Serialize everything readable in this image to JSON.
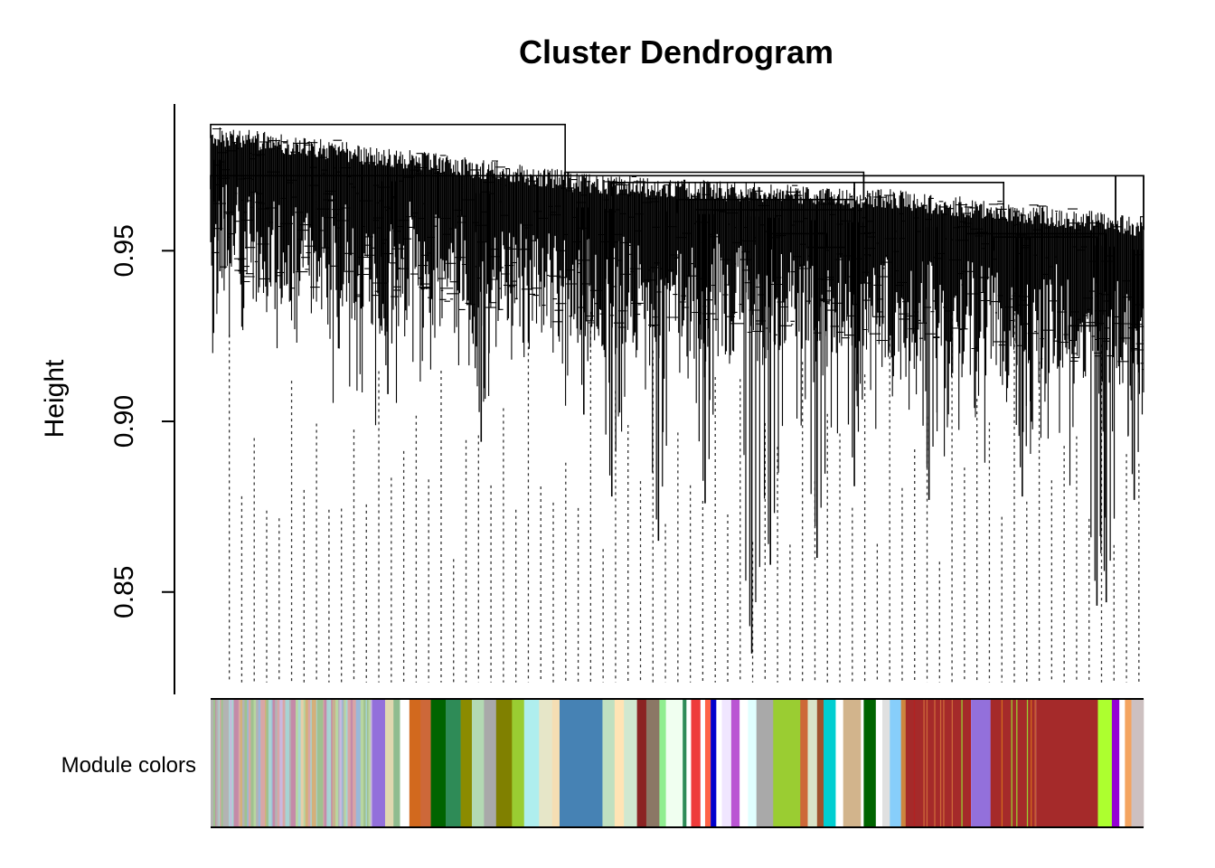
{
  "chart_data": {
    "type": "dendrogram",
    "title": "Cluster Dendrogram",
    "xlabel": "",
    "ylabel": "Height",
    "ylim": [
      0.82,
      0.993
    ],
    "y_ticks": [
      {
        "value": 0.85,
        "label": "0.85"
      },
      {
        "value": 0.9,
        "label": "0.90"
      },
      {
        "value": 0.95,
        "label": "0.95"
      }
    ],
    "merges": [
      {
        "x0": 0.0,
        "x1": 1.0,
        "h": 0.972
      },
      {
        "x0": 0.0,
        "x1": 0.38,
        "h": 0.987
      },
      {
        "x0": 0.38,
        "x1": 0.7,
        "h": 0.973
      },
      {
        "x0": 0.7,
        "x1": 0.97,
        "h": 0.972
      },
      {
        "x0": 0.97,
        "x1": 1.0,
        "h": 0.972
      },
      {
        "x0": 0.43,
        "x1": 0.69,
        "h": 0.97
      },
      {
        "x0": 0.5,
        "x1": 0.69,
        "h": 0.965
      },
      {
        "x0": 0.52,
        "x1": 0.69,
        "h": 0.962
      },
      {
        "x0": 0.6,
        "x1": 0.66,
        "h": 0.955
      },
      {
        "x0": 0.64,
        "x1": 0.68,
        "h": 0.951
      },
      {
        "x0": 0.69,
        "x1": 0.85,
        "h": 0.97
      },
      {
        "x0": 0.81,
        "x1": 0.96,
        "h": 0.955
      },
      {
        "x0": 0.84,
        "x1": 0.95,
        "h": 0.954
      },
      {
        "x0": 0.92,
        "x1": 0.95,
        "h": 0.928
      }
    ],
    "deep_leaves": [
      {
        "x": 0.01,
        "h": 0.944
      },
      {
        "x": 0.19,
        "h": 0.908
      },
      {
        "x": 0.29,
        "h": 0.894
      },
      {
        "x": 0.4,
        "h": 0.902
      },
      {
        "x": 0.43,
        "h": 0.878
      },
      {
        "x": 0.48,
        "h": 0.865
      },
      {
        "x": 0.53,
        "h": 0.876
      },
      {
        "x": 0.58,
        "h": 0.832
      },
      {
        "x": 0.6,
        "h": 0.858
      },
      {
        "x": 0.65,
        "h": 0.86
      },
      {
        "x": 0.69,
        "h": 0.881
      },
      {
        "x": 0.77,
        "h": 0.877
      },
      {
        "x": 0.87,
        "h": 0.878
      },
      {
        "x": 0.95,
        "h": 0.846
      },
      {
        "x": 0.96,
        "h": 0.847
      },
      {
        "x": 0.99,
        "h": 0.877
      }
    ],
    "colors_label": "Module colors",
    "module_colors": [
      {
        "x0": 0.0,
        "x1": 0.173,
        "color": "mixed",
        "palette": [
          "#b3b3b3",
          "#9ab8d9",
          "#d8a6a6",
          "#b8d6a0",
          "#c9b8e0",
          "#e6cfa8",
          "#a7d3d3",
          "#d4b07a",
          "#9fc18f",
          "#c48aa8"
        ]
      },
      {
        "x0": 0.173,
        "x1": 0.187,
        "color": "#9370db"
      },
      {
        "x0": 0.187,
        "x1": 0.196,
        "color": "#e0d8b0"
      },
      {
        "x0": 0.196,
        "x1": 0.203,
        "color": "#8fbc8f"
      },
      {
        "x0": 0.203,
        "x1": 0.213,
        "color": "#ffffff"
      },
      {
        "x0": 0.213,
        "x1": 0.225,
        "color": "#d2691e"
      },
      {
        "x0": 0.225,
        "x1": 0.236,
        "color": "#cd6839"
      },
      {
        "x0": 0.236,
        "x1": 0.252,
        "color": "#006400"
      },
      {
        "x0": 0.252,
        "x1": 0.268,
        "color": "#2e8b57"
      },
      {
        "x0": 0.268,
        "x1": 0.28,
        "color": "#8b8b00"
      },
      {
        "x0": 0.28,
        "x1": 0.293,
        "color": "#b3d9b3"
      },
      {
        "x0": 0.293,
        "x1": 0.306,
        "color": "#a9a9a9"
      },
      {
        "x0": 0.306,
        "x1": 0.323,
        "color": "#808000"
      },
      {
        "x0": 0.323,
        "x1": 0.336,
        "color": "#9acd32"
      },
      {
        "x0": 0.336,
        "x1": 0.352,
        "color": "#afeeee"
      },
      {
        "x0": 0.352,
        "x1": 0.366,
        "color": "#e6e6c8"
      },
      {
        "x0": 0.366,
        "x1": 0.374,
        "color": "#f5deb3"
      },
      {
        "x0": 0.374,
        "x1": 0.42,
        "color": "#4682b4"
      },
      {
        "x0": 0.42,
        "x1": 0.433,
        "color": "#c0e0c0"
      },
      {
        "x0": 0.433,
        "x1": 0.443,
        "color": "#ffe4b5"
      },
      {
        "x0": 0.443,
        "x1": 0.457,
        "color": "#d0e8d0"
      },
      {
        "x0": 0.457,
        "x1": 0.467,
        "color": "#8b2323"
      },
      {
        "x0": 0.467,
        "x1": 0.481,
        "color": "#8b7765"
      },
      {
        "x0": 0.481,
        "x1": 0.488,
        "color": "#90ee90"
      },
      {
        "x0": 0.488,
        "x1": 0.506,
        "color": "#f0fff0"
      },
      {
        "x0": 0.506,
        "x1": 0.51,
        "color": "#2e8b57"
      },
      {
        "x0": 0.51,
        "x1": 0.515,
        "color": "#ffffff"
      },
      {
        "x0": 0.515,
        "x1": 0.525,
        "color": "#ee3b3b"
      },
      {
        "x0": 0.525,
        "x1": 0.53,
        "color": "#ffffff"
      },
      {
        "x0": 0.53,
        "x1": 0.536,
        "color": "#ff6347"
      },
      {
        "x0": 0.536,
        "x1": 0.542,
        "color": "#0000cd"
      },
      {
        "x0": 0.542,
        "x1": 0.548,
        "color": "#ffffff"
      },
      {
        "x0": 0.548,
        "x1": 0.558,
        "color": "#f0e6ff"
      },
      {
        "x0": 0.558,
        "x1": 0.567,
        "color": "#ba55d3"
      },
      {
        "x0": 0.567,
        "x1": 0.576,
        "color": "#ffffff"
      },
      {
        "x0": 0.576,
        "x1": 0.585,
        "color": "#e0ffff"
      },
      {
        "x0": 0.585,
        "x1": 0.603,
        "color": "#a9a9a9"
      },
      {
        "x0": 0.603,
        "x1": 0.625,
        "color": "#9acd32"
      },
      {
        "x0": 0.625,
        "x1": 0.632,
        "color": "#9acd32"
      },
      {
        "x0": 0.632,
        "x1": 0.64,
        "color": "#cd6839"
      },
      {
        "x0": 0.64,
        "x1": 0.65,
        "color": "#d9e3c8"
      },
      {
        "x0": 0.65,
        "x1": 0.657,
        "color": "#a0522d"
      },
      {
        "x0": 0.657,
        "x1": 0.67,
        "color": "#00ced1"
      },
      {
        "x0": 0.67,
        "x1": 0.678,
        "color": "#ffffff"
      },
      {
        "x0": 0.678,
        "x1": 0.697,
        "color": "#d2b48c"
      },
      {
        "x0": 0.697,
        "x1": 0.7,
        "color": "#ffffff"
      },
      {
        "x0": 0.7,
        "x1": 0.713,
        "color": "#006400"
      },
      {
        "x0": 0.713,
        "x1": 0.72,
        "color": "#ffffff"
      },
      {
        "x0": 0.72,
        "x1": 0.728,
        "color": "#e0e0e0"
      },
      {
        "x0": 0.728,
        "x1": 0.74,
        "color": "#87cefa"
      },
      {
        "x0": 0.74,
        "x1": 0.745,
        "color": "#cd853f"
      },
      {
        "x0": 0.745,
        "x1": 0.815,
        "color": "stripes",
        "base": "#a52a2a",
        "alt": [
          "#cd6839",
          "#9acd32",
          "#cd853f",
          "#b22222"
        ]
      },
      {
        "x0": 0.815,
        "x1": 0.836,
        "color": "#9370db"
      },
      {
        "x0": 0.836,
        "x1": 0.885,
        "color": "stripes",
        "base": "#a52a2a",
        "alt": [
          "#cd6839",
          "#9acd32",
          "#d2691e"
        ]
      },
      {
        "x0": 0.885,
        "x1": 0.951,
        "color": "#a52a2a"
      },
      {
        "x0": 0.951,
        "x1": 0.966,
        "color": "#adff2f"
      },
      {
        "x0": 0.966,
        "x1": 0.974,
        "color": "#9400d3"
      },
      {
        "x0": 0.974,
        "x1": 0.98,
        "color": "#ffffff"
      },
      {
        "x0": 0.98,
        "x1": 0.987,
        "color": "#f4a460"
      },
      {
        "x0": 0.987,
        "x1": 1.0,
        "color": "#cdc0c0"
      }
    ]
  }
}
